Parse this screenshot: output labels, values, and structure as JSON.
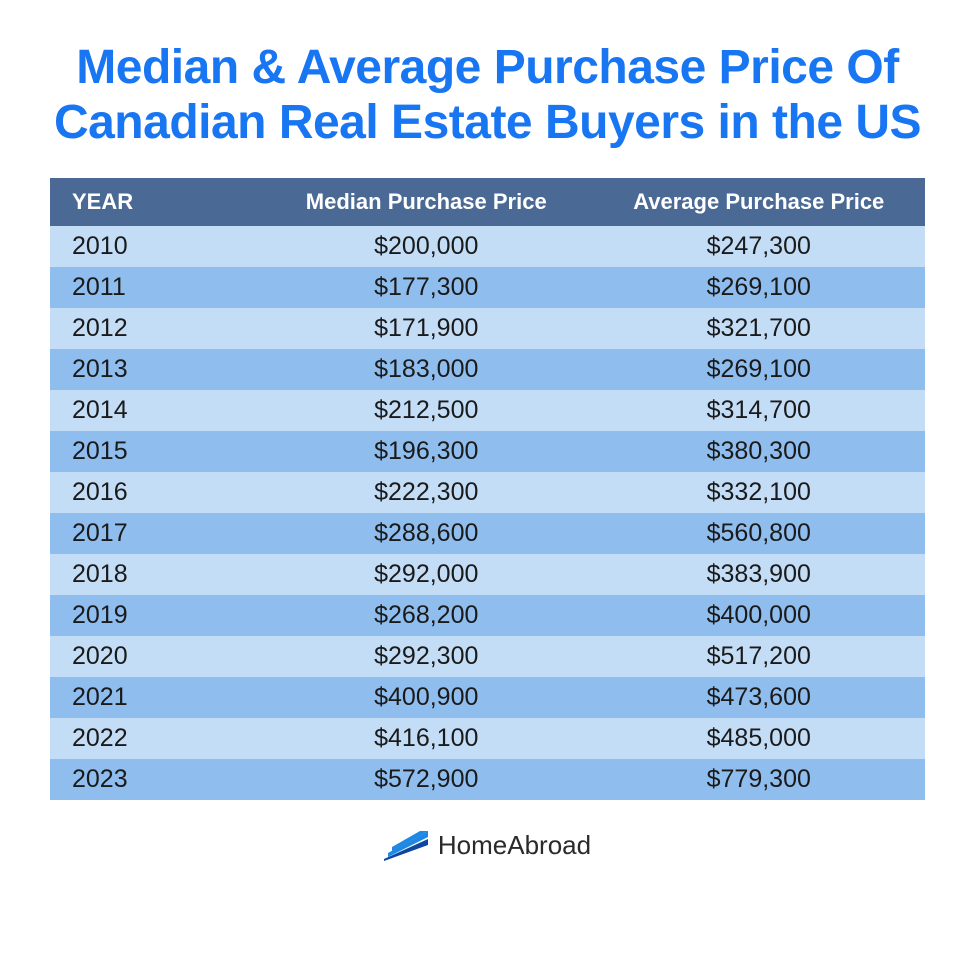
{
  "title": "Median & Average Purchase Price Of Canadian Real Estate Buyers in the US",
  "title_color": "#1976f2",
  "title_fontsize": 48,
  "table": {
    "header_bg": "#4a6a95",
    "header_text_color": "#ffffff",
    "row_color_light": "#c4ddf6",
    "row_color_dark": "#8fbdee",
    "data_text_color": "#1a1a1a",
    "columns": [
      "YEAR",
      "Median Purchase Price",
      "Average Purchase Price"
    ],
    "rows": [
      [
        "2010",
        "$200,000",
        "$247,300"
      ],
      [
        "2011",
        "$177,300",
        "$269,100"
      ],
      [
        "2012",
        "$171,900",
        "$321,700"
      ],
      [
        "2013",
        "$183,000",
        "$269,100"
      ],
      [
        "2014",
        "$212,500",
        "$314,700"
      ],
      [
        "2015",
        "$196,300",
        "$380,300"
      ],
      [
        "2016",
        "$222,300",
        "$332,100"
      ],
      [
        "2017",
        "$288,600",
        "$560,800"
      ],
      [
        "2018",
        "$292,000",
        "$383,900"
      ],
      [
        "2019",
        "$268,200",
        "$400,000"
      ],
      [
        "2020",
        "$292,300",
        "$517,200"
      ],
      [
        "2021",
        "$400,900",
        "$473,600"
      ],
      [
        "2022",
        "$416,100",
        "$485,000"
      ],
      [
        "2023",
        "$572,900",
        "$779,300"
      ]
    ]
  },
  "footer": {
    "brand_name": "HomeAbroad",
    "logo_color_top": "#1e88e5",
    "logo_color_bottom": "#0d47a1"
  }
}
